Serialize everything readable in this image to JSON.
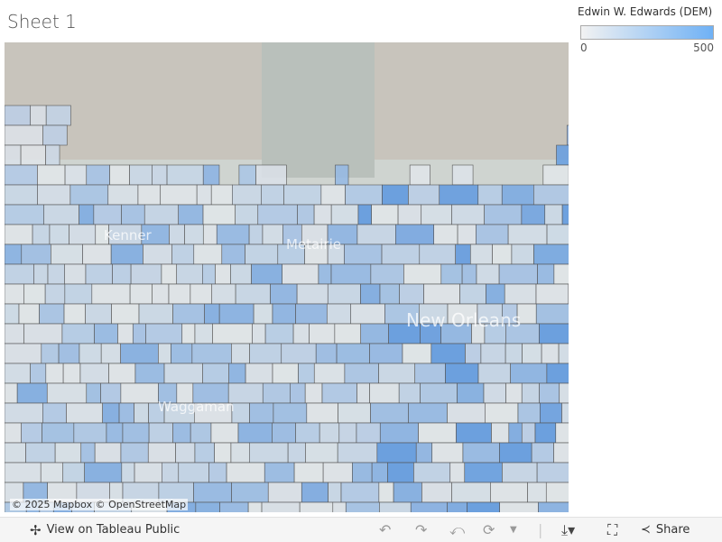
{
  "sheet": {
    "title": "Sheet 1"
  },
  "legend": {
    "title": "Edwin W. Edwards (DEM)",
    "min": "0",
    "max": "500",
    "color_low": "#f2f2f2",
    "color_high": "#6fb1f5"
  },
  "map": {
    "attribution": "© 2025 Mapbox  © OpenStreetMap",
    "labels": [
      "Kenner",
      "Metairie",
      "New Orleans",
      "Waggaman"
    ]
  },
  "toolbar": {
    "view_label": "View on Tableau Public",
    "share_label": "Share",
    "icons": [
      "tableau-logo-icon",
      "undo-icon",
      "redo-icon",
      "revert-icon",
      "refresh-icon",
      "download-icon",
      "fullscreen-icon",
      "share-icon"
    ]
  }
}
